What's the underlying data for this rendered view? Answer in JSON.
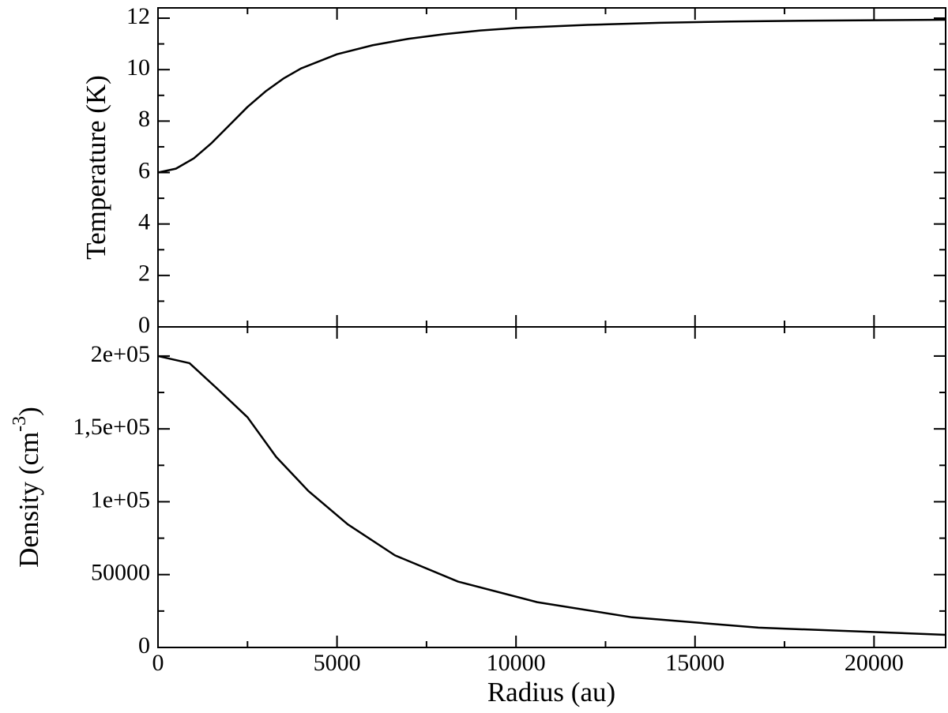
{
  "chart_data": [
    {
      "type": "line",
      "y_label": "Temperature (K)",
      "color": "#000000",
      "x": [
        0,
        500,
        1000,
        1500,
        2000,
        2500,
        3000,
        3500,
        4000,
        5000,
        6000,
        7000,
        8000,
        9000,
        10000,
        12000,
        14000,
        16000,
        18000,
        20000,
        22000
      ],
      "values": [
        6.0,
        6.15,
        6.55,
        7.15,
        7.85,
        8.55,
        9.15,
        9.65,
        10.05,
        10.6,
        10.95,
        11.2,
        11.38,
        11.52,
        11.62,
        11.74,
        11.82,
        11.87,
        11.9,
        11.92,
        11.94
      ],
      "xlim": [
        0,
        22000
      ],
      "xticks": [
        0,
        5000,
        10000,
        15000,
        20000
      ],
      "ylim": [
        0,
        12.4
      ],
      "yticks": [
        0,
        2,
        4,
        6,
        8,
        10,
        12
      ]
    },
    {
      "type": "line",
      "x_label": "Radius (au)",
      "y_label": [
        "Density (cm",
        "-3",
        ")"
      ],
      "color": "#000000",
      "x": [
        0,
        880,
        1655,
        2500,
        3300,
        4200,
        5300,
        6620,
        8380,
        10590,
        13240,
        16770,
        22000
      ],
      "values": [
        200000,
        195100,
        177600,
        158000,
        130800,
        107400,
        84500,
        63200,
        45200,
        31100,
        20700,
        13600,
        8700
      ],
      "xlim": [
        0,
        22000
      ],
      "xticks": [
        0,
        5000,
        10000,
        15000,
        20000
      ],
      "ylim": [
        0,
        220000
      ],
      "yticks": [
        0,
        50000,
        {
          "value": 100000,
          "label": "1e+05"
        },
        {
          "value": 150000,
          "label": "1,5e+05"
        },
        {
          "value": 200000,
          "label": "2e+05"
        }
      ]
    }
  ]
}
